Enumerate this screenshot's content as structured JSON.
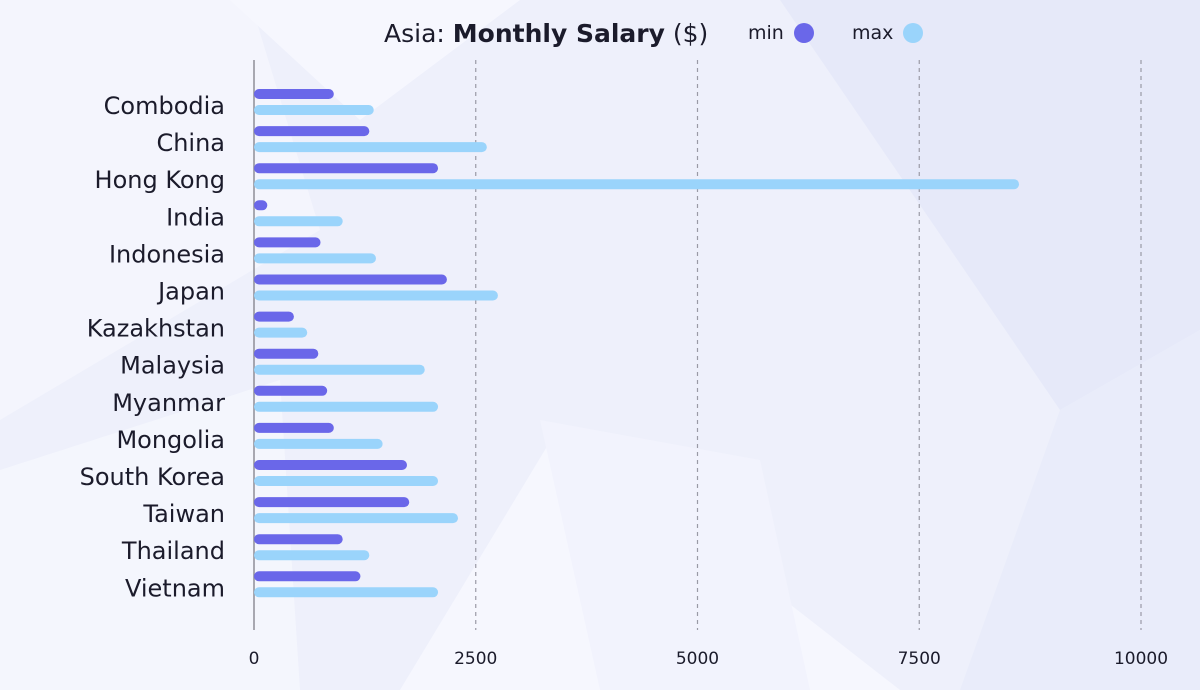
{
  "colors": {
    "min": "#6a67e9",
    "max": "#9ad4fb",
    "grid": "#9a9aa6",
    "axis": "#8e8e98",
    "text": "#1b1b2b",
    "background": "#eef0fb"
  },
  "title": {
    "prefix": "Asia:",
    "main": "Monthly Salary",
    "unit": "($)"
  },
  "legend": {
    "min_label": "min",
    "max_label": "max"
  },
  "chart_data": {
    "type": "bar",
    "orientation": "horizontal",
    "title": "Asia: Monthly Salary ($)",
    "categories": [
      "Combodia",
      "China",
      "Hong Kong",
      "India",
      "Indonesia",
      "Japan",
      "Kazakhstan",
      "Malaysia",
      "Myanmar",
      "Mongolia",
      "South Korea",
      "Taiwan",
      "Thailand",
      "Vietnam"
    ],
    "series": [
      {
        "name": "min",
        "values": [
          900,
          1300,
          2075,
          150,
          750,
          2175,
          450,
          725,
          825,
          900,
          1725,
          1750,
          1000,
          1200
        ]
      },
      {
        "name": "max",
        "values": [
          1350,
          2625,
          8625,
          1000,
          1375,
          2750,
          600,
          1925,
          2075,
          1450,
          2075,
          2300,
          1300,
          2075
        ]
      }
    ],
    "xlim": [
      0,
      10000
    ],
    "xticks": [
      "0",
      "2500",
      "5000",
      "7500",
      "10000"
    ],
    "grid": true,
    "legend_position": "top-right"
  }
}
